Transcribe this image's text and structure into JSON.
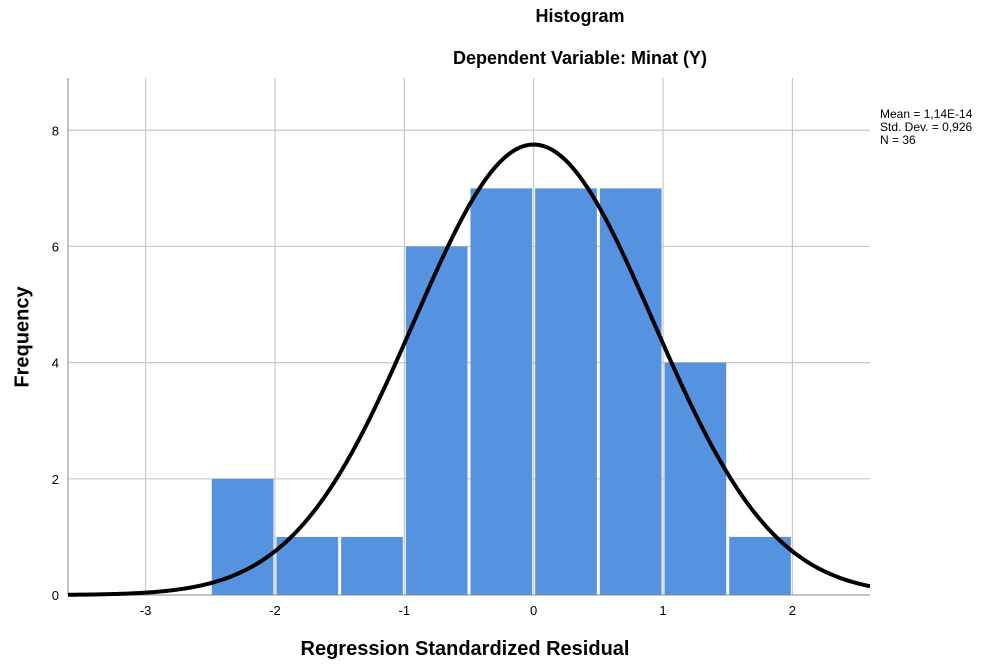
{
  "chart_data": {
    "type": "bar",
    "title": "Histogram",
    "subtitle": "Dependent Variable: Minat (Y)",
    "xlabel": "Regression Standardized Residual",
    "ylabel": "Frequency",
    "bins": [
      {
        "x0": -2.5,
        "x1": -2.0,
        "count": 2
      },
      {
        "x0": -2.0,
        "x1": -1.5,
        "count": 1
      },
      {
        "x0": -1.5,
        "x1": -1.0,
        "count": 1
      },
      {
        "x0": -1.0,
        "x1": -0.5,
        "count": 6
      },
      {
        "x0": -0.5,
        "x1": 0.0,
        "count": 7
      },
      {
        "x0": 0.0,
        "x1": 0.5,
        "count": 7
      },
      {
        "x0": 0.5,
        "x1": 1.0,
        "count": 7
      },
      {
        "x0": 1.0,
        "x1": 1.5,
        "count": 4
      },
      {
        "x0": 1.5,
        "x1": 2.0,
        "count": 1
      }
    ],
    "xlim": [
      -3.6,
      2.6
    ],
    "ylim": [
      0,
      8.9
    ],
    "x_ticks": [
      -3,
      -2,
      -1,
      0,
      1,
      2
    ],
    "x_tick_labels": [
      "-3",
      "-2",
      "-1",
      "0",
      "1",
      "2"
    ],
    "y_ticks": [
      0,
      2,
      4,
      6,
      8
    ],
    "y_tick_labels": [
      "0",
      "2",
      "4",
      "6",
      "8"
    ],
    "grid": true,
    "bar_color": "#5592e0",
    "curve_color": "#000000",
    "normal_curve": {
      "mean": 0.0,
      "std": 0.926,
      "n": 36,
      "bin_width": 0.5
    },
    "stats_text": [
      "Mean = 1,14E-14",
      "Std. Dev. = 0,926",
      "N = 36"
    ]
  }
}
